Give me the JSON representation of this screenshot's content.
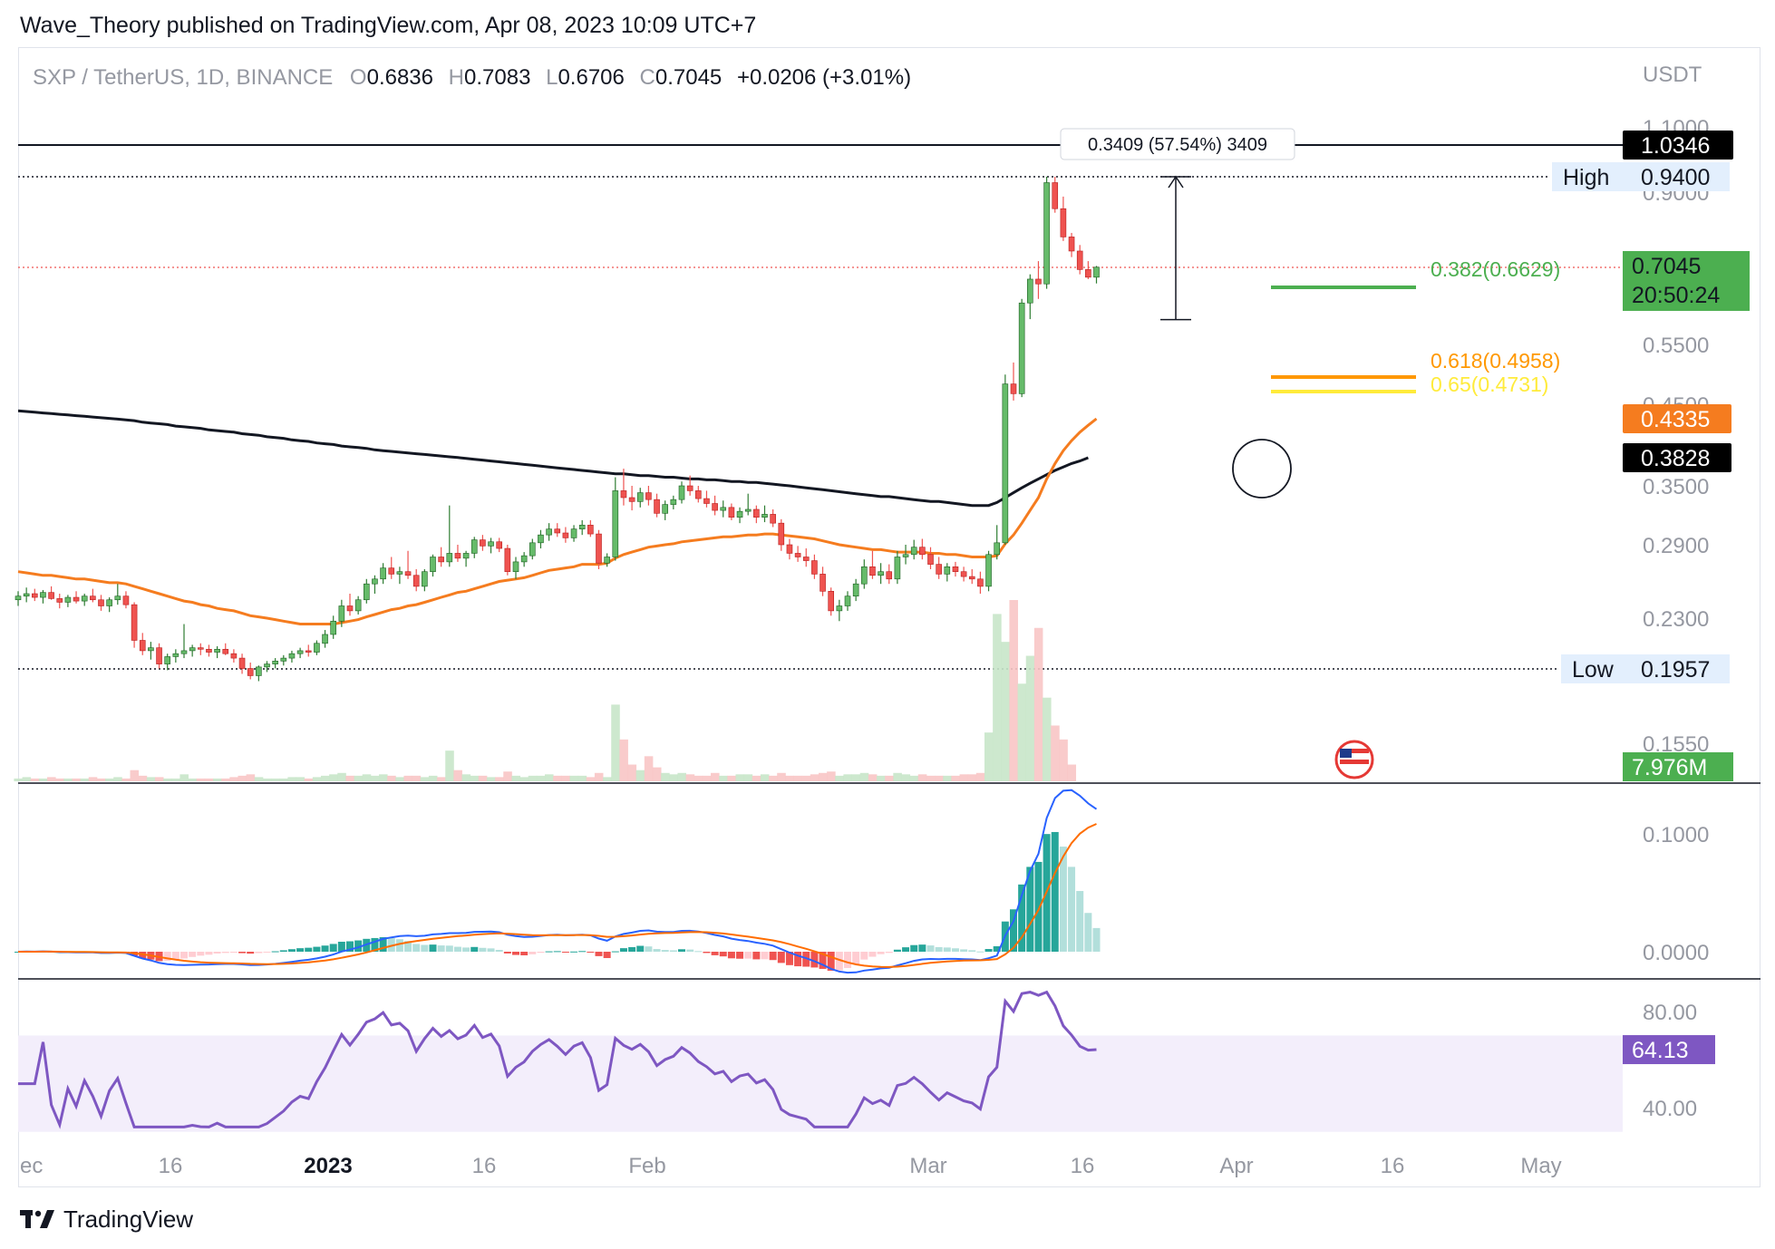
{
  "published_text": "Wave_Theory published on TradingView.com, Apr 08, 2023 10:09 UTC+7",
  "brand": "TradingView",
  "legend": {
    "symbol": "SXP / TetherUS, 1D, BINANCE",
    "open_label": "O",
    "open": "0.6836",
    "high_label": "H",
    "high": "0.7083",
    "low_label": "L",
    "low": "0.6706",
    "close_label": "C",
    "close": "0.7045",
    "change": "+0.0206 (+3.01%)"
  },
  "colors": {
    "up": "#26a69a",
    "up_body": "#4caf50",
    "down": "#ef5350",
    "ema50": "#f57c1f",
    "ema200": "#131722",
    "fib382": "#4caf50",
    "fib618": "#ff9800",
    "fib65": "#ffeb3b",
    "macd": "#2962ff",
    "signal": "#ff6d00",
    "rsi": "#7e57c2",
    "rsi_band": "#f3eefb"
  },
  "chart_data": {
    "type": "candlestick",
    "currency": "USDT",
    "x_ticks": [
      "ec",
      "16",
      "2023",
      "16",
      "Feb",
      "Mar",
      "16",
      "Apr",
      "16",
      "May"
    ],
    "price_axis_ticks": [
      "1.1000",
      "0.9000",
      "0.5500",
      "0.4500",
      "0.3500",
      "0.2900",
      "0.2300",
      "0.1550"
    ],
    "price_labels": {
      "resistance": "1.0346",
      "high_label": "High",
      "high": "0.9400",
      "current": "0.7045",
      "countdown": "20:50:24",
      "ema50": "0.4335",
      "ema200": "0.3828",
      "low_label": "Low",
      "low": "0.1957",
      "volume": "7.976M"
    },
    "measure_label": "0.3409 (57.54%) 3409",
    "fib_levels": [
      {
        "label": "0.382(0.6629)",
        "value": 0.6629
      },
      {
        "label": "0.618(0.4958)",
        "value": 0.4958
      },
      {
        "label": "0.65(0.4731)",
        "value": 0.4731
      }
    ],
    "candles": [
      [
        0.245,
        0.252,
        0.24,
        0.248
      ],
      [
        0.248,
        0.255,
        0.243,
        0.25
      ],
      [
        0.25,
        0.254,
        0.244,
        0.247
      ],
      [
        0.247,
        0.253,
        0.242,
        0.251
      ],
      [
        0.251,
        0.256,
        0.245,
        0.246
      ],
      [
        0.246,
        0.25,
        0.238,
        0.243
      ],
      [
        0.243,
        0.249,
        0.239,
        0.247
      ],
      [
        0.247,
        0.252,
        0.242,
        0.244
      ],
      [
        0.244,
        0.25,
        0.24,
        0.248
      ],
      [
        0.248,
        0.254,
        0.243,
        0.245
      ],
      [
        0.245,
        0.249,
        0.236,
        0.24
      ],
      [
        0.24,
        0.247,
        0.235,
        0.245
      ],
      [
        0.245,
        0.258,
        0.241,
        0.248
      ],
      [
        0.248,
        0.252,
        0.238,
        0.241
      ],
      [
        0.241,
        0.243,
        0.21,
        0.215
      ],
      [
        0.215,
        0.22,
        0.205,
        0.208
      ],
      [
        0.208,
        0.214,
        0.202,
        0.21
      ],
      [
        0.21,
        0.213,
        0.196,
        0.199
      ],
      [
        0.199,
        0.206,
        0.195,
        0.204
      ],
      [
        0.204,
        0.209,
        0.2,
        0.206
      ],
      [
        0.206,
        0.226,
        0.203,
        0.208
      ],
      [
        0.208,
        0.212,
        0.204,
        0.21
      ],
      [
        0.21,
        0.213,
        0.205,
        0.209
      ],
      [
        0.209,
        0.212,
        0.204,
        0.207
      ],
      [
        0.207,
        0.211,
        0.203,
        0.209
      ],
      [
        0.209,
        0.213,
        0.205,
        0.206
      ],
      [
        0.206,
        0.209,
        0.2,
        0.203
      ],
      [
        0.203,
        0.206,
        0.193,
        0.196
      ],
      [
        0.196,
        0.2,
        0.19,
        0.192
      ],
      [
        0.192,
        0.198,
        0.189,
        0.197
      ],
      [
        0.197,
        0.201,
        0.194,
        0.199
      ],
      [
        0.199,
        0.203,
        0.196,
        0.201
      ],
      [
        0.201,
        0.205,
        0.198,
        0.203
      ],
      [
        0.203,
        0.208,
        0.2,
        0.206
      ],
      [
        0.206,
        0.21,
        0.203,
        0.208
      ],
      [
        0.208,
        0.212,
        0.204,
        0.207
      ],
      [
        0.207,
        0.215,
        0.205,
        0.213
      ],
      [
        0.213,
        0.222,
        0.21,
        0.219
      ],
      [
        0.219,
        0.232,
        0.216,
        0.228
      ],
      [
        0.228,
        0.245,
        0.224,
        0.24
      ],
      [
        0.24,
        0.25,
        0.232,
        0.236
      ],
      [
        0.236,
        0.248,
        0.233,
        0.245
      ],
      [
        0.245,
        0.262,
        0.242,
        0.258
      ],
      [
        0.258,
        0.265,
        0.25,
        0.262
      ],
      [
        0.262,
        0.275,
        0.258,
        0.271
      ],
      [
        0.271,
        0.28,
        0.262,
        0.266
      ],
      [
        0.266,
        0.272,
        0.258,
        0.268
      ],
      [
        0.268,
        0.285,
        0.262,
        0.265
      ],
      [
        0.265,
        0.27,
        0.252,
        0.256
      ],
      [
        0.256,
        0.27,
        0.252,
        0.268
      ],
      [
        0.268,
        0.282,
        0.264,
        0.28
      ],
      [
        0.28,
        0.288,
        0.272,
        0.276
      ],
      [
        0.276,
        0.33,
        0.272,
        0.283
      ],
      [
        0.283,
        0.29,
        0.276,
        0.279
      ],
      [
        0.279,
        0.285,
        0.272,
        0.283
      ],
      [
        0.283,
        0.298,
        0.279,
        0.295
      ],
      [
        0.295,
        0.3,
        0.285,
        0.289
      ],
      [
        0.289,
        0.297,
        0.283,
        0.293
      ],
      [
        0.293,
        0.297,
        0.284,
        0.287
      ],
      [
        0.287,
        0.29,
        0.265,
        0.268
      ],
      [
        0.268,
        0.28,
        0.262,
        0.276
      ],
      [
        0.276,
        0.284,
        0.272,
        0.281
      ],
      [
        0.281,
        0.296,
        0.278,
        0.292
      ],
      [
        0.292,
        0.305,
        0.287,
        0.3
      ],
      [
        0.3,
        0.312,
        0.294,
        0.306
      ],
      [
        0.306,
        0.312,
        0.298,
        0.302
      ],
      [
        0.302,
        0.308,
        0.292,
        0.297
      ],
      [
        0.297,
        0.31,
        0.293,
        0.306
      ],
      [
        0.306,
        0.315,
        0.3,
        0.31
      ],
      [
        0.31,
        0.315,
        0.298,
        0.301
      ],
      [
        0.301,
        0.305,
        0.27,
        0.275
      ],
      [
        0.275,
        0.283,
        0.272,
        0.28
      ],
      [
        0.28,
        0.36,
        0.277,
        0.345
      ],
      [
        0.345,
        0.37,
        0.33,
        0.338
      ],
      [
        0.338,
        0.35,
        0.325,
        0.334
      ],
      [
        0.334,
        0.348,
        0.328,
        0.343
      ],
      [
        0.343,
        0.35,
        0.33,
        0.336
      ],
      [
        0.336,
        0.342,
        0.318,
        0.322
      ],
      [
        0.322,
        0.335,
        0.315,
        0.331
      ],
      [
        0.331,
        0.34,
        0.326,
        0.336
      ],
      [
        0.336,
        0.355,
        0.332,
        0.35
      ],
      [
        0.35,
        0.362,
        0.34,
        0.345
      ],
      [
        0.345,
        0.35,
        0.333,
        0.337
      ],
      [
        0.337,
        0.345,
        0.328,
        0.332
      ],
      [
        0.332,
        0.34,
        0.32,
        0.325
      ],
      [
        0.325,
        0.335,
        0.318,
        0.328
      ],
      [
        0.328,
        0.332,
        0.315,
        0.318
      ],
      [
        0.318,
        0.328,
        0.312,
        0.324
      ],
      [
        0.324,
        0.342,
        0.32,
        0.326
      ],
      [
        0.326,
        0.33,
        0.312,
        0.318
      ],
      [
        0.318,
        0.33,
        0.313,
        0.321
      ],
      [
        0.321,
        0.326,
        0.308,
        0.312
      ],
      [
        0.312,
        0.316,
        0.285,
        0.29
      ],
      [
        0.29,
        0.296,
        0.278,
        0.283
      ],
      [
        0.283,
        0.289,
        0.276,
        0.28
      ],
      [
        0.28,
        0.287,
        0.272,
        0.277
      ],
      [
        0.277,
        0.282,
        0.262,
        0.266
      ],
      [
        0.266,
        0.272,
        0.248,
        0.252
      ],
      [
        0.252,
        0.255,
        0.232,
        0.236
      ],
      [
        0.236,
        0.245,
        0.228,
        0.24
      ],
      [
        0.24,
        0.252,
        0.236,
        0.248
      ],
      [
        0.248,
        0.262,
        0.244,
        0.258
      ],
      [
        0.258,
        0.278,
        0.254,
        0.272
      ],
      [
        0.272,
        0.285,
        0.262,
        0.265
      ],
      [
        0.265,
        0.275,
        0.258,
        0.268
      ],
      [
        0.268,
        0.274,
        0.258,
        0.262
      ],
      [
        0.262,
        0.285,
        0.258,
        0.28
      ],
      [
        0.28,
        0.29,
        0.274,
        0.282
      ],
      [
        0.282,
        0.295,
        0.278,
        0.288
      ],
      [
        0.288,
        0.296,
        0.278,
        0.282
      ],
      [
        0.282,
        0.288,
        0.27,
        0.274
      ],
      [
        0.274,
        0.28,
        0.262,
        0.266
      ],
      [
        0.266,
        0.275,
        0.26,
        0.272
      ],
      [
        0.272,
        0.276,
        0.264,
        0.268
      ],
      [
        0.268,
        0.272,
        0.26,
        0.264
      ],
      [
        0.264,
        0.27,
        0.258,
        0.262
      ],
      [
        0.262,
        0.268,
        0.25,
        0.256
      ],
      [
        0.256,
        0.285,
        0.252,
        0.282
      ],
      [
        0.282,
        0.31,
        0.278,
        0.292
      ],
      [
        0.292,
        0.5,
        0.29,
        0.485
      ],
      [
        0.485,
        0.52,
        0.46,
        0.47
      ],
      [
        0.47,
        0.64,
        0.465,
        0.632
      ],
      [
        0.632,
        0.69,
        0.6,
        0.68
      ],
      [
        0.68,
        0.72,
        0.64,
        0.67
      ],
      [
        0.67,
        0.94,
        0.66,
        0.92
      ],
      [
        0.92,
        0.94,
        0.84,
        0.85
      ],
      [
        0.85,
        0.88,
        0.77,
        0.78
      ],
      [
        0.78,
        0.79,
        0.73,
        0.745
      ],
      [
        0.745,
        0.76,
        0.69,
        0.7
      ],
      [
        0.7,
        0.72,
        0.68,
        0.684
      ],
      [
        0.684,
        0.708,
        0.671,
        0.705
      ]
    ],
    "volume": [
      2,
      3,
      2,
      2,
      3,
      2,
      2,
      2,
      2,
      3,
      2,
      2,
      3,
      2,
      8,
      4,
      3,
      3,
      2,
      2,
      5,
      2,
      2,
      2,
      2,
      2,
      3,
      4,
      5,
      3,
      2,
      2,
      2,
      3,
      3,
      2,
      3,
      4,
      5,
      6,
      4,
      4,
      5,
      4,
      5,
      4,
      3,
      4,
      4,
      3,
      4,
      3,
      22,
      8,
      5,
      4,
      4,
      3,
      3,
      7,
      4,
      3,
      4,
      4,
      5,
      4,
      4,
      4,
      4,
      3,
      6,
      3,
      55,
      30,
      12,
      8,
      18,
      10,
      6,
      5,
      6,
      5,
      4,
      4,
      6,
      4,
      4,
      5,
      5,
      4,
      5,
      4,
      6,
      4,
      4,
      4,
      5,
      6,
      7,
      4,
      5,
      5,
      6,
      5,
      4,
      4,
      6,
      5,
      4,
      5,
      4,
      4,
      4,
      4,
      5,
      5,
      6,
      35,
      120,
      100,
      130,
      70,
      90,
      110,
      60,
      40,
      30,
      12
    ],
    "ema50": [
      0.268,
      0.267,
      0.266,
      0.265,
      0.265,
      0.264,
      0.263,
      0.262,
      0.262,
      0.261,
      0.26,
      0.259,
      0.259,
      0.258,
      0.256,
      0.254,
      0.252,
      0.25,
      0.248,
      0.246,
      0.244,
      0.243,
      0.241,
      0.24,
      0.238,
      0.237,
      0.236,
      0.234,
      0.232,
      0.231,
      0.23,
      0.229,
      0.228,
      0.227,
      0.226,
      0.226,
      0.226,
      0.226,
      0.226,
      0.227,
      0.228,
      0.229,
      0.231,
      0.233,
      0.235,
      0.237,
      0.238,
      0.24,
      0.241,
      0.243,
      0.245,
      0.247,
      0.249,
      0.251,
      0.252,
      0.254,
      0.256,
      0.258,
      0.26,
      0.261,
      0.262,
      0.263,
      0.265,
      0.267,
      0.269,
      0.27,
      0.271,
      0.272,
      0.274,
      0.274,
      0.274,
      0.275,
      0.279,
      0.282,
      0.284,
      0.286,
      0.288,
      0.289,
      0.29,
      0.291,
      0.293,
      0.294,
      0.295,
      0.296,
      0.297,
      0.298,
      0.298,
      0.299,
      0.3,
      0.3,
      0.301,
      0.301,
      0.3,
      0.299,
      0.298,
      0.297,
      0.296,
      0.294,
      0.292,
      0.29,
      0.289,
      0.288,
      0.287,
      0.286,
      0.286,
      0.285,
      0.284,
      0.284,
      0.284,
      0.284,
      0.283,
      0.283,
      0.282,
      0.282,
      0.281,
      0.28,
      0.28,
      0.28,
      0.281,
      0.291,
      0.3,
      0.312,
      0.325,
      0.338,
      0.358,
      0.376,
      0.392,
      0.405,
      0.416,
      0.425,
      0.4335
    ],
    "ema200": [
      0.445,
      0.444,
      0.443,
      0.442,
      0.441,
      0.44,
      0.439,
      0.438,
      0.437,
      0.436,
      0.435,
      0.434,
      0.433,
      0.432,
      0.431,
      0.429,
      0.428,
      0.427,
      0.426,
      0.424,
      0.423,
      0.422,
      0.421,
      0.419,
      0.418,
      0.417,
      0.416,
      0.414,
      0.413,
      0.412,
      0.41,
      0.409,
      0.408,
      0.406,
      0.405,
      0.404,
      0.402,
      0.401,
      0.4,
      0.398,
      0.397,
      0.396,
      0.395,
      0.393,
      0.392,
      0.391,
      0.39,
      0.389,
      0.388,
      0.387,
      0.386,
      0.385,
      0.384,
      0.383,
      0.382,
      0.381,
      0.38,
      0.379,
      0.378,
      0.377,
      0.376,
      0.375,
      0.374,
      0.373,
      0.372,
      0.371,
      0.37,
      0.369,
      0.368,
      0.367,
      0.366,
      0.365,
      0.364,
      0.364,
      0.363,
      0.362,
      0.362,
      0.361,
      0.36,
      0.36,
      0.359,
      0.358,
      0.358,
      0.357,
      0.357,
      0.356,
      0.355,
      0.355,
      0.354,
      0.354,
      0.353,
      0.352,
      0.351,
      0.35,
      0.349,
      0.348,
      0.347,
      0.346,
      0.345,
      0.344,
      0.343,
      0.342,
      0.341,
      0.34,
      0.339,
      0.339,
      0.338,
      0.337,
      0.336,
      0.335,
      0.334,
      0.334,
      0.333,
      0.332,
      0.331,
      0.33,
      0.33,
      0.33,
      0.333,
      0.338,
      0.343,
      0.348,
      0.353,
      0.358,
      0.363,
      0.368,
      0.372,
      0.376,
      0.379,
      0.3828
    ],
    "macd_axis_ticks": [
      "0.1000",
      "0.0000"
    ],
    "rsi_axis_ticks": [
      "80.00",
      "40.00"
    ],
    "rsi_current": "64.13",
    "macd_range": [
      -0.02,
      0.14
    ],
    "rsi_range": [
      25,
      92
    ]
  }
}
